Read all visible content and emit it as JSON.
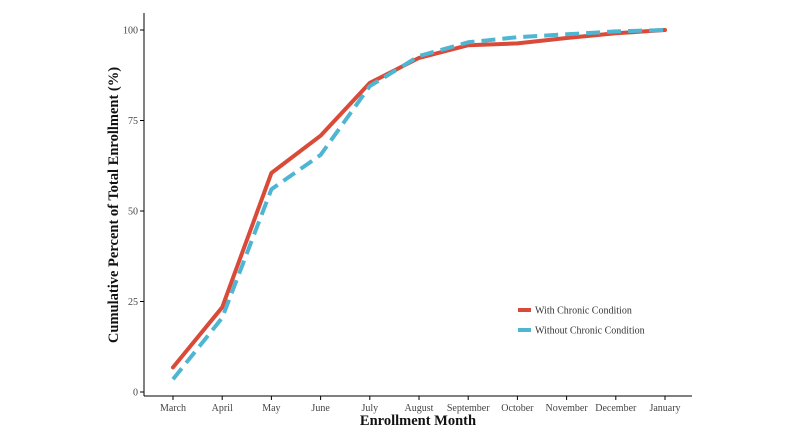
{
  "chart_data": {
    "type": "line",
    "title": "",
    "xlabel": "Enrollment Month",
    "ylabel": "Cumulative Percent of Total Enrollment (%)",
    "categories": [
      "March",
      "April",
      "May",
      "June",
      "July",
      "August",
      "September",
      "October",
      "November",
      "December",
      "January"
    ],
    "ylim": [
      0,
      100
    ],
    "yticks": [
      0,
      25,
      50,
      75,
      100
    ],
    "grid": false,
    "legend_position": "bottom-right",
    "series": [
      {
        "name": "With Chronic Condition",
        "color": "#d94a38",
        "style": "solid",
        "values": [
          6.8,
          23.4,
          60.5,
          70.8,
          85.4,
          92.3,
          95.8,
          96.3,
          97.8,
          99.1,
          100.0
        ]
      },
      {
        "name": "Without Chronic Condition",
        "color": "#4eb6d2",
        "style": "dashed",
        "values": [
          3.5,
          20.5,
          56.0,
          65.5,
          84.5,
          92.8,
          96.6,
          98.0,
          98.8,
          99.6,
          100.0
        ]
      }
    ]
  }
}
